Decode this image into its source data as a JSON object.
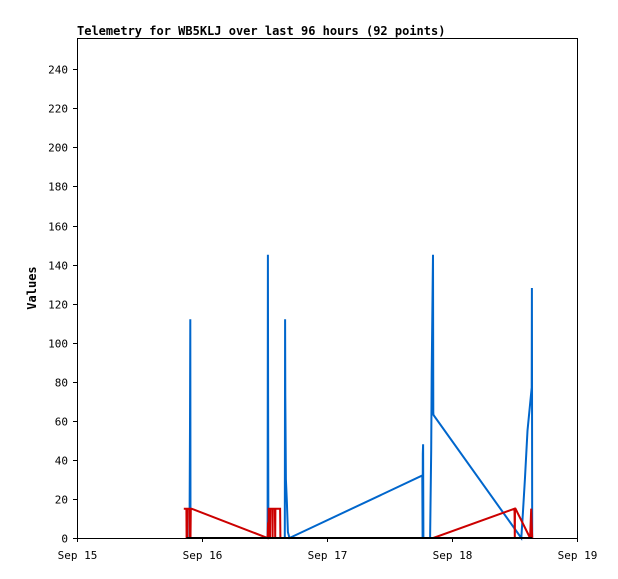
{
  "chart_data": {
    "type": "line",
    "title": "Telemetry for WB5KLJ over last 96 hours (92 points)",
    "xlabel": "",
    "ylabel": "Values",
    "x_ticks": [
      "Sep 15",
      "Sep 16",
      "Sep 17",
      "Sep 18",
      "Sep 19"
    ],
    "y_ticks": [
      0,
      20,
      40,
      60,
      80,
      100,
      120,
      140,
      160,
      180,
      200,
      220,
      240
    ],
    "xlim": [
      0,
      96
    ],
    "ylim": [
      0,
      256
    ],
    "x_unit": "hours since Sep 15 00:00",
    "grid": false,
    "legend": "none",
    "series": [
      {
        "color": "#0066cc",
        "points": [
          [
            21.0,
            0
          ],
          [
            21.6,
            0
          ],
          [
            21.7,
            57
          ],
          [
            21.75,
            112
          ],
          [
            21.8,
            0
          ],
          [
            36.6,
            0
          ],
          [
            36.65,
            145
          ],
          [
            36.7,
            73
          ],
          [
            36.75,
            0
          ],
          [
            39.9,
            0
          ],
          [
            39.95,
            112
          ],
          [
            40.0,
            73
          ],
          [
            40.1,
            30
          ],
          [
            40.3,
            18
          ],
          [
            40.5,
            3
          ],
          [
            40.8,
            0
          ],
          [
            66.3,
            32
          ],
          [
            66.35,
            0
          ],
          [
            66.4,
            43
          ],
          [
            66.45,
            48
          ],
          [
            66.5,
            0
          ],
          [
            67.8,
            0
          ],
          [
            68.0,
            45
          ],
          [
            68.1,
            85
          ],
          [
            68.2,
            108
          ],
          [
            68.3,
            132
          ],
          [
            68.35,
            145
          ],
          [
            68.4,
            64
          ],
          [
            68.45,
            63
          ],
          [
            85.3,
            0
          ],
          [
            85.6,
            12
          ],
          [
            86.0,
            30
          ],
          [
            86.5,
            55
          ],
          [
            87.3,
            77
          ],
          [
            87.35,
            128
          ],
          [
            87.4,
            0
          ]
        ]
      },
      {
        "color": "#cc0000",
        "points": [
          [
            20.5,
            15
          ],
          [
            21.0,
            15
          ],
          [
            21.05,
            0
          ],
          [
            21.1,
            15
          ],
          [
            21.15,
            0
          ],
          [
            21.2,
            15
          ],
          [
            21.6,
            15
          ],
          [
            21.65,
            0
          ],
          [
            21.8,
            0
          ],
          [
            21.85,
            15
          ],
          [
            22.0,
            15
          ],
          [
            36.6,
            0
          ],
          [
            36.7,
            8
          ],
          [
            36.75,
            0
          ],
          [
            36.8,
            15
          ],
          [
            37.0,
            15
          ],
          [
            37.05,
            0
          ],
          [
            37.1,
            15
          ],
          [
            37.5,
            15
          ],
          [
            37.55,
            0
          ],
          [
            37.6,
            15
          ],
          [
            38.0,
            15
          ],
          [
            38.05,
            0
          ],
          [
            38.1,
            15
          ],
          [
            39.0,
            15
          ],
          [
            39.05,
            0
          ],
          [
            39.1,
            0
          ],
          [
            68.0,
            0
          ],
          [
            68.4,
            0
          ],
          [
            84.0,
            15
          ],
          [
            84.05,
            0
          ],
          [
            84.1,
            15
          ],
          [
            84.2,
            15
          ],
          [
            87.0,
            0
          ],
          [
            87.2,
            15
          ],
          [
            87.4,
            0
          ]
        ]
      },
      {
        "color": "#000000",
        "points": [
          [
            21.0,
            0
          ],
          [
            39.9,
            0
          ],
          [
            68.4,
            0
          ],
          [
            87.4,
            0
          ]
        ]
      }
    ]
  }
}
